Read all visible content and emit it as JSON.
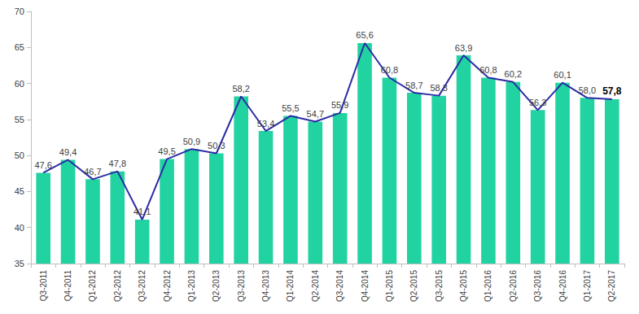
{
  "chart_data": {
    "type": "bar",
    "categories": [
      "Q3-2011",
      "Q4-2011",
      "Q1-2012",
      "Q2-2012",
      "Q3-2012",
      "Q4-2012",
      "Q1-2013",
      "Q2-2013",
      "Q3-2013",
      "Q4-2013",
      "Q1-2014",
      "Q2-2014",
      "Q3-2014",
      "Q4-2014",
      "Q1-2015",
      "Q2-2015",
      "Q3-2015",
      "Q4-2015",
      "Q1-2016",
      "Q2-2016",
      "Q3-2016",
      "Q4-2016",
      "Q1-2017",
      "Q2-2017"
    ],
    "series": [
      {
        "type": "bar",
        "color": "#22d3a2",
        "values": [
          47.6,
          49.4,
          46.7,
          47.8,
          41.1,
          49.5,
          50.9,
          50.3,
          58.2,
          53.4,
          55.5,
          54.7,
          55.9,
          65.6,
          60.8,
          58.7,
          58.3,
          63.9,
          60.8,
          60.2,
          56.3,
          60.1,
          58.0,
          57.8
        ]
      },
      {
        "type": "line",
        "color": "#2b2ba6",
        "marker": "none",
        "values": [
          47.6,
          49.4,
          46.7,
          47.8,
          41.1,
          49.5,
          50.9,
          50.3,
          58.2,
          53.4,
          55.5,
          54.7,
          55.9,
          65.6,
          60.8,
          58.7,
          58.3,
          63.9,
          60.8,
          60.2,
          56.3,
          60.1,
          58.0,
          57.8
        ],
        "value_labels": [
          "47,6",
          "49,4",
          "46,7",
          "47,8",
          "41,1",
          "49,5",
          "50,9",
          "50,3",
          "58,2",
          "53,4",
          "55,5",
          "54,7",
          "55,9",
          "65,6",
          "60,8",
          "58,7",
          "58,3",
          "63,9",
          "60,8",
          "60,2",
          "56,3",
          "60,1",
          "58,0",
          "57,8"
        ]
      }
    ],
    "ylim": [
      35,
      70
    ],
    "yticks": [
      35,
      40,
      45,
      50,
      55,
      60,
      65,
      70
    ],
    "grid": false,
    "data_labels": true
  }
}
